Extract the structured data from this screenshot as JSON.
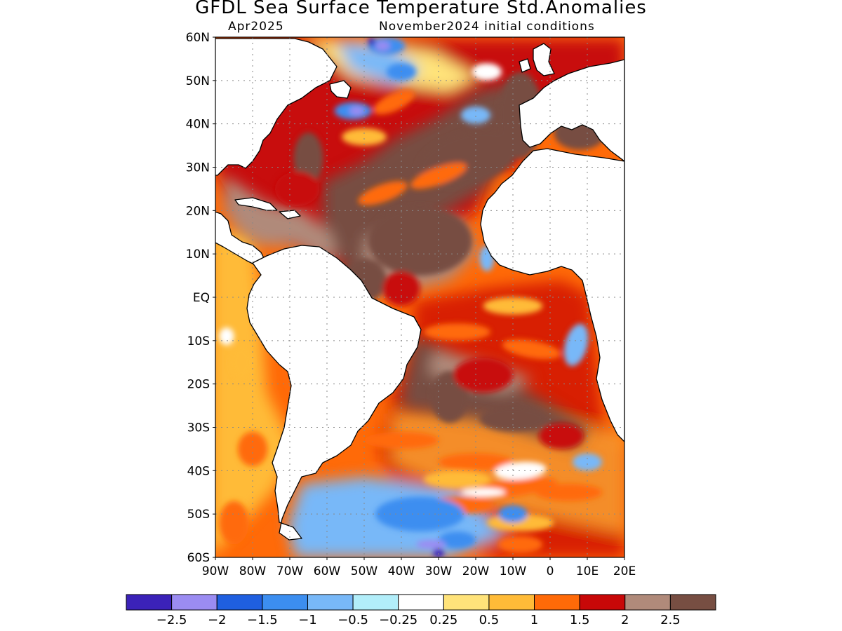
{
  "title": "GFDL Sea Surface Temperature Std.Anomalies",
  "valid_month": "Apr2025",
  "init_label": "November2024 initial conditions",
  "map": {
    "lon_range": [
      -90,
      20
    ],
    "lat_range": [
      -60,
      60
    ],
    "lat_ticks": [
      {
        "lat": 60,
        "label": "60N"
      },
      {
        "lat": 50,
        "label": "50N"
      },
      {
        "lat": 40,
        "label": "40N"
      },
      {
        "lat": 30,
        "label": "30N"
      },
      {
        "lat": 20,
        "label": "20N"
      },
      {
        "lat": 10,
        "label": "10N"
      },
      {
        "lat": 0,
        "label": "EQ"
      },
      {
        "lat": -10,
        "label": "10S"
      },
      {
        "lat": -20,
        "label": "20S"
      },
      {
        "lat": -30,
        "label": "30S"
      },
      {
        "lat": -40,
        "label": "40S"
      },
      {
        "lat": -50,
        "label": "50S"
      },
      {
        "lat": -60,
        "label": "60S"
      }
    ],
    "lon_ticks": [
      {
        "lon": -90,
        "label": "90W"
      },
      {
        "lon": -80,
        "label": "80W"
      },
      {
        "lon": -70,
        "label": "70W"
      },
      {
        "lon": -60,
        "label": "60W"
      },
      {
        "lon": -50,
        "label": "50W"
      },
      {
        "lon": -40,
        "label": "40W"
      },
      {
        "lon": -30,
        "label": "30W"
      },
      {
        "lon": -20,
        "label": "20W"
      },
      {
        "lon": -10,
        "label": "10W"
      },
      {
        "lon": 0,
        "label": "0"
      },
      {
        "lon": 10,
        "label": "10E"
      },
      {
        "lon": 20,
        "label": "20E"
      }
    ]
  },
  "colorbar": {
    "colors": [
      "#3b22b8",
      "#9b8cf2",
      "#1f5fe0",
      "#3c8ef0",
      "#78b8f8",
      "#b2eefa",
      "#ffffff",
      "#ffe37a",
      "#ffbb38",
      "#ff6a08",
      "#c80808",
      "#b08a7a",
      "#774e42"
    ],
    "labels": [
      "−2.5",
      "−2",
      "−1.5",
      "−1",
      "−0.5",
      "−0.25",
      "0.25",
      "0.5",
      "1",
      "1.5",
      "2",
      "2.5"
    ]
  },
  "anomaly_regions": [
    {
      "level": "very-high",
      "lon": -22,
      "lat": 32,
      "rx": 14,
      "ry": 6,
      "rot": -15
    },
    {
      "level": "very-high",
      "lon": -8,
      "lat": 42,
      "rx": 6,
      "ry": 10,
      "rot": 0
    },
    {
      "level": "very-high",
      "lon": -35,
      "lat": 13,
      "rx": 14,
      "ry": 8,
      "rot": 0
    },
    {
      "level": "very-high",
      "lon": -50,
      "lat": 4,
      "rx": 6,
      "ry": 5,
      "rot": 0
    },
    {
      "level": "very-high",
      "lon": -27,
      "lat": -23,
      "rx": 5,
      "ry": 6,
      "rot": 0
    },
    {
      "level": "very-high",
      "lon": -10,
      "lat": -28,
      "rx": 9,
      "ry": 3,
      "rot": 0
    },
    {
      "level": "very-high",
      "lon": 8,
      "lat": 38,
      "rx": 7,
      "ry": 4,
      "rot": 0
    },
    {
      "level": "very-high",
      "lon": -65,
      "lat": 32,
      "rx": 4,
      "ry": 6,
      "rot": 0
    },
    {
      "level": "high",
      "lon": -68,
      "lat": 25,
      "rx": 6,
      "ry": 4,
      "rot": 0
    },
    {
      "level": "high",
      "lon": -40,
      "lat": 2,
      "rx": 5,
      "ry": 4,
      "rot": 0
    },
    {
      "level": "high",
      "lon": -18,
      "lat": -18,
      "rx": 8,
      "ry": 4,
      "rot": 0
    },
    {
      "level": "high",
      "lon": 3,
      "lat": -32,
      "rx": 6,
      "ry": 3,
      "rot": 0
    },
    {
      "level": "strong",
      "lon": -30,
      "lat": 28,
      "rx": 8,
      "ry": 2,
      "rot": -20
    },
    {
      "level": "strong",
      "lon": -45,
      "lat": 24,
      "rx": 7,
      "ry": 2,
      "rot": -20
    },
    {
      "level": "strong",
      "lon": -25,
      "lat": -8,
      "rx": 9,
      "ry": 2,
      "rot": 0
    },
    {
      "level": "strong",
      "lon": -5,
      "lat": -12,
      "rx": 8,
      "ry": 2,
      "rot": 10
    },
    {
      "level": "strong",
      "lon": -40,
      "lat": -33,
      "rx": 10,
      "ry": 2,
      "rot": 0
    },
    {
      "level": "strong",
      "lon": -20,
      "lat": -38,
      "rx": 10,
      "ry": 2,
      "rot": 0
    },
    {
      "level": "strong",
      "lon": -10,
      "lat": -44,
      "rx": 12,
      "ry": 2,
      "rot": -8
    },
    {
      "level": "strong",
      "lon": 5,
      "lat": -45,
      "rx": 9,
      "ry": 2,
      "rot": 0
    },
    {
      "level": "strong",
      "lon": -25,
      "lat": -48,
      "rx": 10,
      "ry": 2,
      "rot": 0
    },
    {
      "level": "strong",
      "lon": -80,
      "lat": -35,
      "rx": 4,
      "ry": 4,
      "rot": 0
    },
    {
      "level": "strong",
      "lon": -85,
      "lat": -52,
      "rx": 4,
      "ry": 5,
      "rot": 0
    },
    {
      "level": "strong",
      "lon": -8,
      "lat": -57,
      "rx": 6,
      "ry": 2,
      "rot": 0
    },
    {
      "level": "strong",
      "lon": -42,
      "lat": 45,
      "rx": 6,
      "ry": 2,
      "rot": -25
    },
    {
      "level": "warm",
      "lon": -50,
      "lat": 37,
      "rx": 6,
      "ry": 2,
      "rot": 0
    },
    {
      "level": "warm",
      "lon": -10,
      "lat": -2,
      "rx": 8,
      "ry": 2,
      "rot": 0
    },
    {
      "level": "warm",
      "lon": -25,
      "lat": -42,
      "rx": 9,
      "ry": 2,
      "rot": 0
    },
    {
      "level": "warm",
      "lon": -83,
      "lat": -15,
      "rx": 3,
      "ry": 4,
      "rot": 0
    },
    {
      "level": "warm",
      "lon": -8,
      "lat": -52,
      "rx": 9,
      "ry": 2,
      "rot": 0
    },
    {
      "level": "neutral",
      "lon": -17,
      "lat": 52,
      "rx": 4,
      "ry": 2,
      "rot": 0
    },
    {
      "level": "neutral",
      "lon": -8,
      "lat": -40,
      "rx": 7,
      "ry": 2,
      "rot": -5
    },
    {
      "level": "neutral",
      "lon": -18,
      "lat": -45,
      "rx": 6,
      "ry": 1,
      "rot": 0
    },
    {
      "level": "neutral",
      "lon": -87,
      "lat": -9,
      "rx": 2,
      "ry": 2,
      "rot": 0
    },
    {
      "level": "cool",
      "lon": 7,
      "lat": -11,
      "rx": 3,
      "ry": 5,
      "rot": 15
    },
    {
      "level": "cool",
      "lon": -17,
      "lat": 9,
      "rx": 2,
      "ry": 3,
      "rot": 0
    },
    {
      "level": "cool",
      "lon": 10,
      "lat": -38,
      "rx": 4,
      "ry": 2,
      "rot": 0
    },
    {
      "level": "cool",
      "lon": -20,
      "lat": 42,
      "rx": 4,
      "ry": 2,
      "rot": 0
    },
    {
      "level": "cold",
      "lon": -44,
      "lat": 58,
      "rx": 5,
      "ry": 2,
      "rot": 0
    },
    {
      "level": "cold",
      "lon": -40,
      "lat": 52,
      "rx": 4,
      "ry": 2,
      "rot": 0
    },
    {
      "level": "cold",
      "lon": -53,
      "lat": 43,
      "rx": 5,
      "ry": 2,
      "rot": 0
    },
    {
      "level": "cold",
      "lon": -35,
      "lat": -50,
      "rx": 12,
      "ry": 4,
      "rot": 0
    },
    {
      "level": "cold",
      "lon": -25,
      "lat": -56,
      "rx": 5,
      "ry": 2,
      "rot": 0
    },
    {
      "level": "cold",
      "lon": -10,
      "lat": -50,
      "rx": 4,
      "ry": 2,
      "rot": 0
    },
    {
      "level": "very-cold",
      "lon": -45,
      "lat": 58,
      "rx": 2,
      "ry": 1,
      "rot": 0
    },
    {
      "level": "very-cold",
      "lon": -52,
      "lat": 43,
      "rx": 2,
      "ry": 1,
      "rot": 0
    },
    {
      "level": "very-cold",
      "lon": -32,
      "lat": -57,
      "rx": 4,
      "ry": 1,
      "rot": 0
    },
    {
      "level": "extreme-cold",
      "lon": -48,
      "lat": 59,
      "rx": 1,
      "ry": 1,
      "rot": 0
    },
    {
      "level": "extreme-cold",
      "lon": -30,
      "lat": -59,
      "rx": 1.5,
      "ry": 1,
      "rot": 0
    }
  ]
}
